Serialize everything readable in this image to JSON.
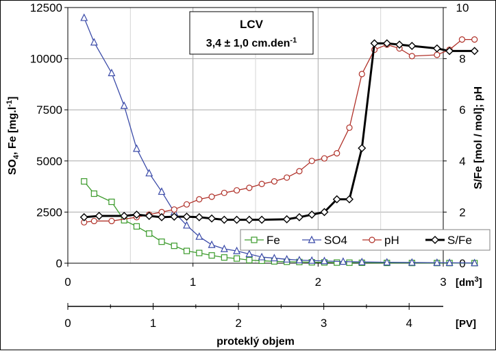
{
  "chart_data": {
    "type": "line",
    "left_axis": {
      "label_main": "SO",
      "label_sub": "4",
      "label_rest": ", Fe [mg.l",
      "label_sup": "-1",
      "label_end": "]",
      "range": [
        0,
        12500
      ],
      "ticks": [
        "0",
        "2500",
        "5000",
        "7500",
        "10000",
        "12500"
      ]
    },
    "right_axis": {
      "label": "S/Fe [mol / mol]; pH",
      "range": [
        0,
        10
      ],
      "ticks": [
        "0",
        "2",
        "4",
        "6",
        "8",
        "10"
      ]
    },
    "x_axis": {
      "unit": "[dm",
      "unit_sup": "3",
      "unit_end": "]",
      "range": [
        0,
        3
      ],
      "ticks": [
        "0",
        "1",
        "2",
        "3"
      ]
    },
    "x2_axis": {
      "unit": "[PV]",
      "label": "proteklý objem",
      "range": [
        0,
        4.4
      ],
      "ticks": [
        "0",
        "1",
        "2",
        "3",
        "4"
      ]
    },
    "annotation": {
      "title": "LCV",
      "value": "3,4 ± 1,0 cm.den",
      "value_sup": "-1"
    },
    "grid": true,
    "legend_position": "bottom-right",
    "series": [
      {
        "name": "Fe",
        "axis": "left",
        "color": "#3a9a2a",
        "marker": "square",
        "x": [
          0.13,
          0.21,
          0.35,
          0.45,
          0.55,
          0.65,
          0.75,
          0.85,
          0.95,
          1.05,
          1.15,
          1.25,
          1.35,
          1.45,
          1.55,
          1.65,
          1.75,
          1.85,
          1.95,
          2.05,
          2.15,
          2.25,
          2.35,
          2.55,
          2.75,
          2.95,
          3.05,
          3.25
        ],
        "y": [
          4000,
          3400,
          3000,
          2100,
          1800,
          1450,
          1050,
          850,
          600,
          500,
          380,
          280,
          230,
          150,
          120,
          90,
          70,
          60,
          45,
          40,
          30,
          25,
          20,
          15,
          12,
          10,
          8,
          5
        ]
      },
      {
        "name": "SO4",
        "axis": "left",
        "color": "#3a4aa8",
        "marker": "triangle",
        "x": [
          0.13,
          0.21,
          0.35,
          0.45,
          0.55,
          0.65,
          0.75,
          0.85,
          0.95,
          1.05,
          1.15,
          1.25,
          1.35,
          1.45,
          1.55,
          1.65,
          1.75,
          1.85,
          1.95,
          2.05,
          2.2,
          2.35,
          2.55,
          2.75,
          2.95,
          3.05,
          3.25
        ],
        "y": [
          12000,
          10800,
          9300,
          7700,
          5600,
          4400,
          3500,
          2500,
          1850,
          1300,
          900,
          700,
          600,
          450,
          300,
          250,
          190,
          150,
          130,
          110,
          80,
          60,
          45,
          35,
          25,
          20,
          10
        ]
      },
      {
        "name": "pH",
        "axis": "right",
        "color": "#b03028",
        "marker": "circle",
        "x": [
          0.13,
          0.21,
          0.35,
          0.55,
          0.65,
          0.75,
          0.85,
          0.95,
          1.05,
          1.15,
          1.25,
          1.35,
          1.45,
          1.55,
          1.65,
          1.75,
          1.85,
          1.95,
          2.05,
          2.15,
          2.25,
          2.35,
          2.45,
          2.55,
          2.65,
          2.75,
          2.95,
          3.05,
          3.15,
          3.25
        ],
        "y": [
          1.6,
          1.65,
          1.65,
          1.8,
          1.9,
          2.0,
          2.1,
          2.3,
          2.5,
          2.6,
          2.75,
          2.85,
          2.95,
          3.1,
          3.2,
          3.35,
          3.6,
          4.0,
          4.1,
          4.3,
          5.3,
          7.4,
          8.35,
          8.55,
          8.4,
          8.1,
          8.15,
          8.35,
          8.75,
          8.75
        ]
      },
      {
        "name": "S/Fe",
        "axis": "right",
        "color": "#000000",
        "marker": "diamond",
        "x": [
          0.13,
          0.25,
          0.45,
          0.55,
          0.65,
          0.75,
          0.85,
          0.95,
          1.05,
          1.15,
          1.25,
          1.35,
          1.45,
          1.55,
          1.75,
          1.85,
          1.95,
          2.05,
          2.15,
          2.25,
          2.35,
          2.45,
          2.55,
          2.65,
          2.75,
          2.95,
          3.05,
          3.25
        ],
        "y": [
          1.8,
          1.85,
          1.85,
          1.9,
          1.85,
          1.8,
          1.82,
          1.82,
          1.8,
          1.75,
          1.7,
          1.7,
          1.7,
          1.7,
          1.72,
          1.8,
          1.9,
          2.0,
          2.5,
          2.5,
          4.5,
          8.6,
          8.6,
          8.55,
          8.5,
          8.4,
          8.3,
          8.3
        ]
      }
    ]
  }
}
